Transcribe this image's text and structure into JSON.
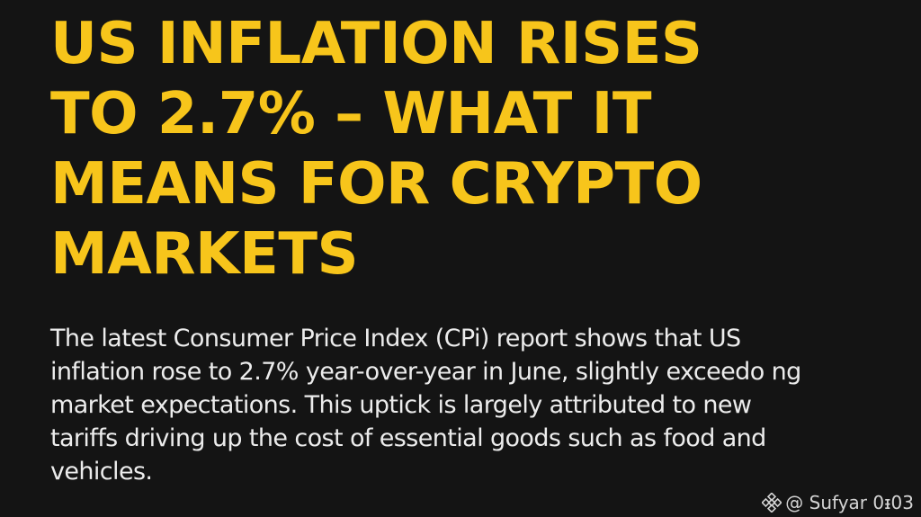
{
  "headline": {
    "lines": [
      "US INFLATION RISES",
      "TO 2.7% – WHAT IT",
      "MEANS FOR CRYPTO",
      "MARKETS"
    ]
  },
  "article": {
    "lines": [
      "The latest Consumer Price Index (CPi) report shows that US",
      "inflation rose to 2.7% year-over-year in June, slightly exceedo ng",
      "market expectations. This uptick is largely attributed to new",
      "tariffs driving up the cost of essential goods such as food and",
      "vehicles."
    ]
  },
  "watermark": {
    "text": "@ Sufyar 0ᵻ03",
    "icon": "binance-logo-icon"
  },
  "colors": {
    "background": "#141414",
    "headline": "#f7c51b",
    "body_text": "#ececec"
  }
}
